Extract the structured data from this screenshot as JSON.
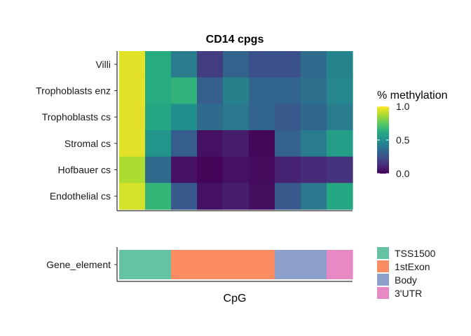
{
  "chart_data": [
    {
      "type": "heatmap",
      "title": "CD14 cpgs",
      "rows": [
        "Villi",
        "Trophoblasts enz",
        "Trophoblasts cs",
        "Stromal cs",
        "Hofbauer cs",
        "Endothelial cs"
      ],
      "n_columns": 9,
      "values": [
        [
          0.96,
          0.62,
          0.42,
          0.18,
          0.32,
          0.25,
          0.25,
          0.35,
          0.45
        ],
        [
          0.96,
          0.62,
          0.65,
          0.3,
          0.44,
          0.33,
          0.33,
          0.37,
          0.46
        ],
        [
          0.96,
          0.6,
          0.5,
          0.35,
          0.4,
          0.33,
          0.28,
          0.34,
          0.42
        ],
        [
          0.96,
          0.52,
          0.3,
          0.05,
          0.08,
          0.02,
          0.32,
          0.42,
          0.56
        ],
        [
          0.88,
          0.35,
          0.05,
          0.01,
          0.05,
          0.03,
          0.1,
          0.12,
          0.15
        ],
        [
          0.94,
          0.66,
          0.28,
          0.05,
          0.08,
          0.04,
          0.28,
          0.4,
          0.6
        ]
      ],
      "xlabel": "",
      "legend": {
        "title": "% methylation",
        "ticks": [
          "1.0",
          "0.5",
          "0.0"
        ],
        "tick_values": [
          1.0,
          0.5,
          0.0
        ],
        "range": [
          0,
          1
        ],
        "palette": "viridis",
        "colors": [
          "#440154",
          "#472c7a",
          "#3b518b",
          "#2c718e",
          "#21908d",
          "#27ad81",
          "#5cc863",
          "#aadc32",
          "#fde725"
        ]
      }
    },
    {
      "type": "heatmap",
      "rows": [
        "Gene_element"
      ],
      "xlabel": "CpG",
      "columns_category": [
        "TSS1500",
        "TSS1500",
        "1stExon",
        "1stExon",
        "1stExon",
        "1stExon",
        "Body",
        "Body",
        "3'UTR"
      ],
      "legend": {
        "entries": [
          {
            "label": "TSS1500",
            "color": "#66c2a5"
          },
          {
            "label": "1stExon",
            "color": "#fc8d62"
          },
          {
            "label": "Body",
            "color": "#8da0cb"
          },
          {
            "label": "3'UTR",
            "color": "#e78ac3"
          }
        ]
      }
    }
  ]
}
